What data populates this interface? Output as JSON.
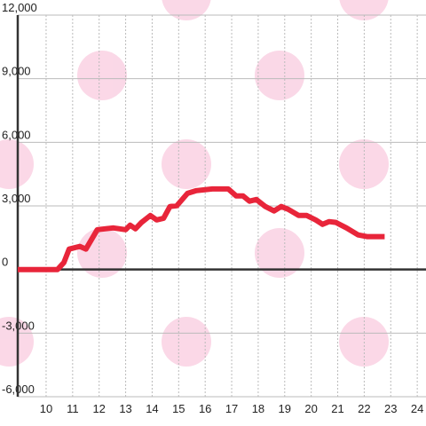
{
  "chart_data": {
    "type": "line",
    "x": [
      8.93,
      10.43,
      10.67,
      10.87,
      11.27,
      11.5,
      11.93,
      12.53,
      12.77,
      13.0,
      13.17,
      13.37,
      13.6,
      13.93,
      14.17,
      14.43,
      14.67,
      14.93,
      15.33,
      15.67,
      16.27,
      16.87,
      17.17,
      17.43,
      17.67,
      17.93,
      18.27,
      18.6,
      18.87,
      19.13,
      19.53,
      19.83,
      20.17,
      20.43,
      20.67,
      20.93,
      21.33,
      21.77,
      22.1,
      22.77
    ],
    "series": [
      {
        "color": "#e8253a",
        "values": [
          0,
          0,
          330,
          960,
          1090,
          960,
          1880,
          1960,
          1920,
          1880,
          2090,
          1920,
          2220,
          2550,
          2340,
          2420,
          2970,
          3010,
          3590,
          3720,
          3800,
          3800,
          3470,
          3470,
          3220,
          3300,
          2970,
          2760,
          2970,
          2840,
          2550,
          2550,
          2340,
          2130,
          2260,
          2220,
          1960,
          1630,
          1550,
          1550
        ]
      }
    ],
    "xlim": [
      8.93,
      24.33
    ],
    "xticks": [
      10,
      11,
      12,
      13,
      14,
      15,
      16,
      17,
      18,
      19,
      20,
      21,
      22,
      23,
      24
    ],
    "ylim": [
      -6000,
      12000
    ],
    "yticks": [
      {
        "value": -6000,
        "label": "-6,000"
      },
      {
        "value": -3000,
        "label": "-3,000"
      },
      0,
      {
        "value": 3000,
        "label": "3,000"
      },
      {
        "value": 6000,
        "label": "6,000"
      },
      {
        "value": 9000,
        "label": "9,000"
      },
      {
        "value": 12000,
        "label": "12,000"
      }
    ],
    "grid": true
  }
}
